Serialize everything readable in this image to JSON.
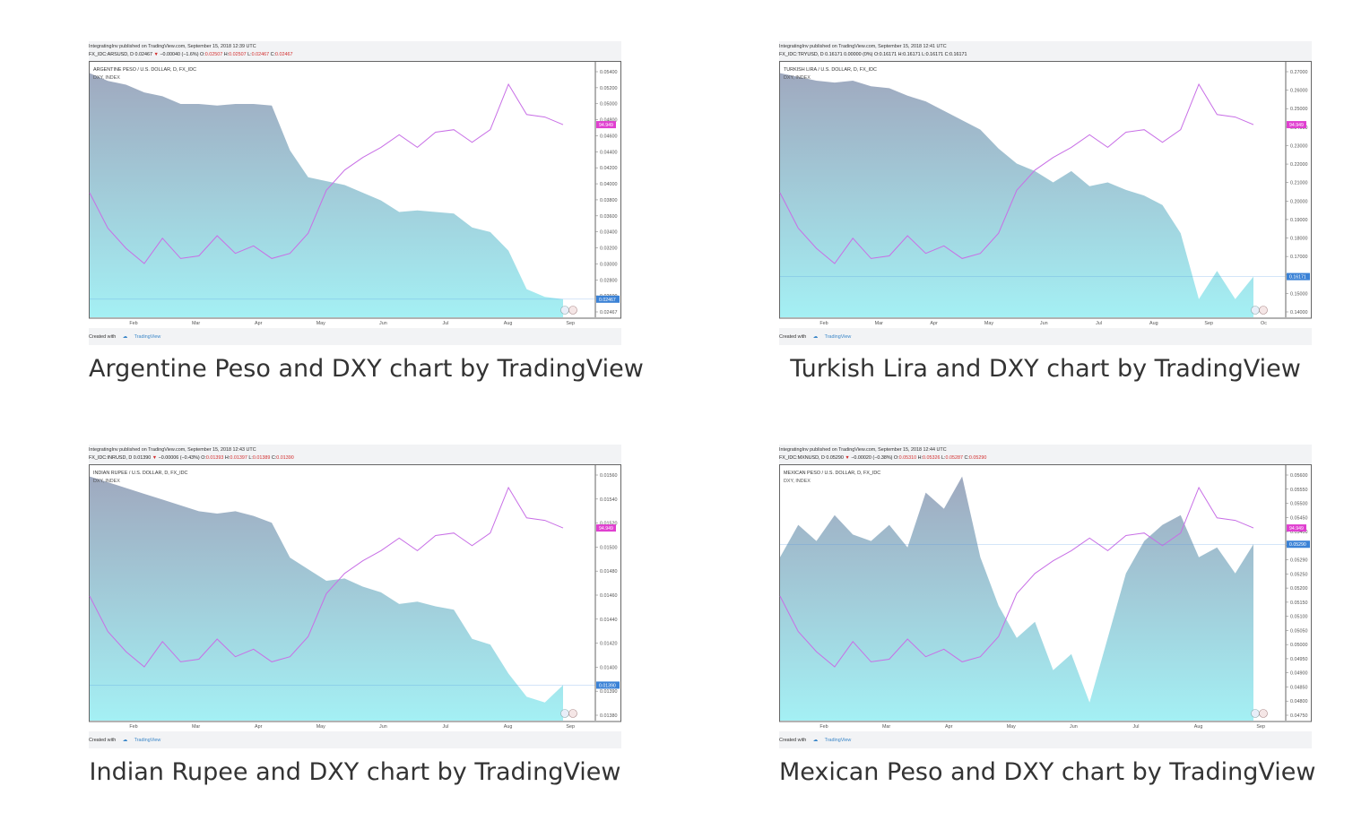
{
  "charts": [
    {
      "meta_line": "IntegratingInv published on TradingView.com, September 15, 2018 12:39 UTC",
      "meta_user": "IntegratingInv",
      "symbol_line": "FX_IDC:ARSUSD, D 0.02467",
      "change_text": "−0.00040 (−1.6%)",
      "ohlc": {
        "O": "0.02507",
        "H": "0.02507",
        "L": "0.02467",
        "C": "0.02467"
      },
      "legend_main": "ARGENTINE PESO / U.S. DOLLAR, D, FX_IDC",
      "legend_dxy": "DXY, INDEX",
      "y_ticks": [
        "0.05400",
        "0.05200",
        "0.05000",
        "0.04800",
        "0.04600",
        "0.04400",
        "0.04200",
        "0.04000",
        "0.03800",
        "0.03600",
        "0.03400",
        "0.03200",
        "0.03000",
        "0.02800",
        "0.02600",
        "0.02467"
      ],
      "x_ticks": [
        "Feb",
        "Mar",
        "Apr",
        "May",
        "Jun",
        "Jul",
        "Aug",
        "Sep"
      ],
      "last_label": "0.02467",
      "dxy_label": "94.949",
      "created_with": "Created with",
      "tv_name": "TradingView",
      "caption": "Argentine Peso and DXY chart by TradingView",
      "chart_data": {
        "type": "area",
        "series": [
          {
            "name": "ARGENTINE PESO / U.S. DOLLAR, D, FX_IDC",
            "color": "#7fd8e6",
            "values": [
              0.054,
              0.053,
              0.0525,
              0.0515,
              0.051,
              0.05,
              0.05,
              0.0498,
              0.05,
              0.05,
              0.0498,
              0.044,
              0.0405,
              0.04,
              0.0395,
              0.0385,
              0.0375,
              0.036,
              0.0362,
              0.036,
              0.0358,
              0.034,
              0.0334,
              0.031,
              0.026,
              0.025,
              0.0247
            ]
          },
          {
            "name": "DXY, INDEX",
            "color": "#c86fe6",
            "values": [
              92.2,
              90.8,
              90.0,
              89.4,
              90.4,
              89.6,
              89.7,
              90.5,
              89.8,
              90.1,
              89.6,
              89.8,
              90.6,
              92.3,
              93.1,
              93.6,
              94.0,
              94.5,
              94.0,
              94.6,
              94.7,
              94.2,
              94.7,
              96.5,
              95.3,
              95.2,
              94.9
            ]
          }
        ]
      }
    },
    {
      "meta_line": "IntegratingInv published on TradingView.com, September 15, 2018 12:41 UTC",
      "meta_user": "IntegratingInv",
      "symbol_line": "FX_IDC:TRYUSD, D 0.16171 0.00000 (0%)",
      "change_text": "",
      "ohlc": {
        "O": "0.16171",
        "H": "0.16171",
        "L": "0.16171",
        "C": "0.16171"
      },
      "legend_main": "TURKISH LIRA / U.S. DOLLAR, D, FX_IDC",
      "legend_dxy": "DXY, INDEX",
      "y_ticks": [
        "0.27000",
        "0.26000",
        "0.25000",
        "0.24000",
        "0.23000",
        "0.22000",
        "0.21000",
        "0.20000",
        "0.19000",
        "0.18000",
        "0.17000",
        "0.16171",
        "0.15000",
        "0.14000"
      ],
      "x_ticks": [
        "Feb",
        "Mar",
        "Apr",
        "May",
        "Jun",
        "Jul",
        "Aug",
        "Sep",
        "Oc"
      ],
      "last_label": "0.16171",
      "dxy_label": "94.949",
      "created_with": "Created with",
      "tv_name": "TradingView",
      "caption": "Turkish Lira and DXY chart by TradingView",
      "chart_data": {
        "type": "area",
        "series": [
          {
            "name": "TURKISH LIRA / U.S. DOLLAR, D, FX_IDC",
            "color": "#7fd8e6",
            "values": [
              0.27,
              0.268,
              0.266,
              0.265,
              0.266,
              0.263,
              0.262,
              0.258,
              0.255,
              0.25,
              0.245,
              0.24,
              0.23,
              0.222,
              0.218,
              0.212,
              0.218,
              0.21,
              0.212,
              0.208,
              0.205,
              0.2,
              0.185,
              0.15,
              0.165,
              0.15,
              0.162
            ]
          },
          {
            "name": "DXY, INDEX",
            "color": "#c86fe6",
            "values": [
              92.2,
              90.8,
              90.0,
              89.4,
              90.4,
              89.6,
              89.7,
              90.5,
              89.8,
              90.1,
              89.6,
              89.8,
              90.6,
              92.3,
              93.1,
              93.6,
              94.0,
              94.5,
              94.0,
              94.6,
              94.7,
              94.2,
              94.7,
              96.5,
              95.3,
              95.2,
              94.9
            ]
          }
        ]
      }
    },
    {
      "meta_line": "IntegratingInv published on TradingView.com, September 15, 2018 12:43 UTC",
      "meta_user": "IntegratingInv",
      "symbol_line": "FX_IDC:INRUSD, D 0.01390",
      "change_text": "−0.00006 (−0.43%)",
      "ohlc": {
        "O": "0.01393",
        "H": "0.01397",
        "L": "0.01389",
        "C": "0.01390"
      },
      "legend_main": "INDIAN RUPEE / U.S. DOLLAR, D, FX_IDC",
      "legend_dxy": "DXY, INDEX",
      "y_ticks": [
        "0.01560",
        "0.01540",
        "0.01520",
        "0.01500",
        "0.01480",
        "0.01460",
        "0.01440",
        "0.01420",
        "0.01400",
        "0.01390",
        "0.01380"
      ],
      "x_ticks": [
        "Feb",
        "Mar",
        "Apr",
        "May",
        "Jun",
        "Jul",
        "Aug",
        "Sep"
      ],
      "last_label": "0.01390",
      "dxy_label": "94.949",
      "created_with": "Created with",
      "tv_name": "TradingView",
      "caption": "Indian Rupee and DXY chart by TradingView",
      "chart_data": {
        "type": "area",
        "series": [
          {
            "name": "INDIAN RUPEE / U.S. DOLLAR, D, FX_IDC",
            "color": "#7fd8e6",
            "values": [
              0.0157,
              0.01565,
              0.0156,
              0.01555,
              0.0155,
              0.01545,
              0.0154,
              0.01538,
              0.0154,
              0.01536,
              0.0153,
              0.015,
              0.0149,
              0.0148,
              0.01482,
              0.01475,
              0.0147,
              0.0146,
              0.01462,
              0.01458,
              0.01455,
              0.0143,
              0.01425,
              0.014,
              0.0138,
              0.01375,
              0.0139
            ]
          },
          {
            "name": "DXY, INDEX",
            "color": "#c86fe6",
            "values": [
              92.2,
              90.8,
              90.0,
              89.4,
              90.4,
              89.6,
              89.7,
              90.5,
              89.8,
              90.1,
              89.6,
              89.8,
              90.6,
              92.3,
              93.1,
              93.6,
              94.0,
              94.5,
              94.0,
              94.6,
              94.7,
              94.2,
              94.7,
              96.5,
              95.3,
              95.2,
              94.9
            ]
          }
        ]
      }
    },
    {
      "meta_line": "IntegratingInv published on TradingView.com, September 15, 2018 12:44 UTC",
      "meta_user": "IntegratingInv",
      "symbol_line": "FX_IDC:MXNUSD, D 0.05290",
      "change_text": "−0.00020 (−0.38%)",
      "ohlc": {
        "O": "0.05310",
        "H": "0.05326",
        "L": "0.05287",
        "C": "0.05290"
      },
      "legend_main": "MEXICAN PESO / U.S. DOLLAR, D, FX_IDC",
      "legend_dxy": "DXY, INDEX",
      "y_ticks": [
        "0.05600",
        "0.05550",
        "0.05500",
        "0.05450",
        "0.05400",
        "0.05350",
        "0.05290",
        "0.05250",
        "0.05200",
        "0.05150",
        "0.05100",
        "0.05050",
        "0.05000",
        "0.04950",
        "0.04900",
        "0.04850",
        "0.04800",
        "0.04750"
      ],
      "x_ticks": [
        "Feb",
        "Mar",
        "Apr",
        "May",
        "Jun",
        "Jul",
        "Aug",
        "Sep"
      ],
      "last_label": "0.05290",
      "dxy_label": "94.949",
      "created_with": "Created with",
      "tv_name": "TradingView",
      "caption": "Mexican Peso and DXY chart by TradingView",
      "chart_data": {
        "type": "area",
        "series": [
          {
            "name": "MEXICAN PESO / U.S. DOLLAR, D, FX_IDC",
            "color": "#7fd8e6",
            "values": [
              0.0525,
              0.0535,
              0.053,
              0.0538,
              0.0532,
              0.053,
              0.0535,
              0.0528,
              0.0545,
              0.054,
              0.055,
              0.0525,
              0.051,
              0.05,
              0.0505,
              0.049,
              0.0495,
              0.048,
              0.05,
              0.052,
              0.053,
              0.0535,
              0.0538,
              0.0525,
              0.0528,
              0.052,
              0.0529
            ]
          },
          {
            "name": "DXY, INDEX",
            "color": "#c86fe6",
            "values": [
              92.2,
              90.8,
              90.0,
              89.4,
              90.4,
              89.6,
              89.7,
              90.5,
              89.8,
              90.1,
              89.6,
              89.8,
              90.6,
              92.3,
              93.1,
              93.6,
              94.0,
              94.5,
              94.0,
              94.6,
              94.7,
              94.2,
              94.7,
              96.5,
              95.3,
              95.2,
              94.9
            ]
          }
        ]
      }
    }
  ]
}
